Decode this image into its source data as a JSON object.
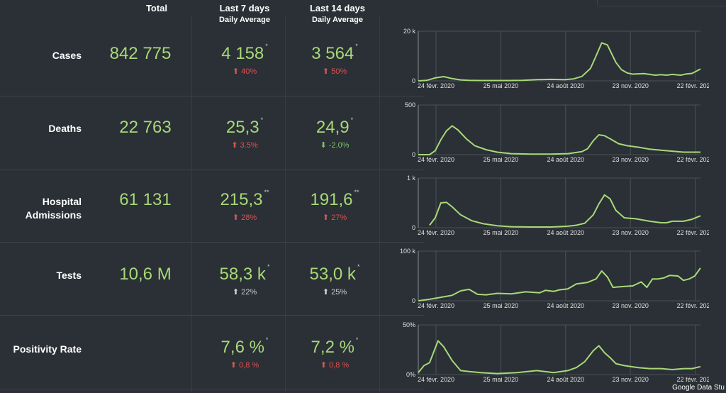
{
  "header": {
    "total": "Total",
    "last7_line1": "Last 7 days",
    "last7_line2": "Daily Average",
    "last14_line1": "Last 14 days",
    "last14_line2": "Daily Average"
  },
  "rows": [
    {
      "label": "Cases",
      "total": "842 775",
      "last7": {
        "value": "4 158",
        "mark": "*",
        "change": "⬆ 40%",
        "trend": "up-red"
      },
      "last14": {
        "value": "3 564",
        "mark": "*",
        "change": "⬆ 50%",
        "trend": "up-red"
      }
    },
    {
      "label": "Deaths",
      "total": "22 763",
      "last7": {
        "value": "25,3",
        "mark": "*",
        "change": "⬆ 3.5%",
        "trend": "up-red"
      },
      "last14": {
        "value": "24,9",
        "mark": "*",
        "change": "⬇ -2.0%",
        "trend": "down-green"
      }
    },
    {
      "label_line1": "Hospital",
      "label_line2": "Admissions",
      "total": "61 131",
      "last7": {
        "value": "215,3",
        "mark": "**",
        "change": "⬆ 28%",
        "trend": "up-red"
      },
      "last14": {
        "value": "191,6",
        "mark": "**",
        "change": "⬆ 27%",
        "trend": "up-red"
      }
    },
    {
      "label": "Tests",
      "total": "10,6 M",
      "last7": {
        "value": "58,3 k",
        "mark": "*",
        "change": "⬆ 22%",
        "trend": "up-grey"
      },
      "last14": {
        "value": "53,0 k",
        "mark": "*",
        "change": "⬆ 25%",
        "trend": "up-grey"
      }
    },
    {
      "label": "Positivity Rate",
      "total": "",
      "last7": {
        "value": "7,6 %",
        "mark": "*",
        "change": "⬆ 0,8 %",
        "trend": "up-red"
      },
      "last14": {
        "value": "7,2 %",
        "mark": "*",
        "change": "⬆ 0,8 %",
        "trend": "up-red"
      }
    }
  ],
  "chart_data": [
    {
      "type": "line",
      "series_color": "#a8d878",
      "y_ticks": [
        "0",
        "20 k"
      ],
      "ylim": [
        0,
        20000
      ],
      "x_ticks": [
        "24 févr. 2020",
        "25 mai 2020",
        "24 août 2020",
        "23 nov. 2020",
        "22 févr. 2021"
      ],
      "x": [
        0,
        0.03,
        0.06,
        0.09,
        0.12,
        0.15,
        0.18,
        0.22,
        0.27,
        0.32,
        0.37,
        0.42,
        0.47,
        0.52,
        0.55,
        0.58,
        0.61,
        0.63,
        0.65,
        0.67,
        0.7,
        0.72,
        0.74,
        0.76,
        0.8,
        0.84,
        0.86,
        0.88,
        0.9,
        0.93,
        0.95,
        0.97,
        1.0
      ],
      "y": [
        0,
        200,
        1200,
        1700,
        900,
        400,
        200,
        150,
        150,
        150,
        200,
        500,
        600,
        500,
        800,
        1800,
        5000,
        10000,
        15300,
        14500,
        7500,
        4500,
        3200,
        2700,
        2900,
        2300,
        2500,
        2300,
        2600,
        2300,
        2800,
        3000,
        4800
      ]
    },
    {
      "type": "line",
      "series_color": "#a8d878",
      "y_ticks": [
        "0",
        "500"
      ],
      "ylim": [
        0,
        500
      ],
      "x_ticks": [
        "24 févr. 2020",
        "25 mai 2020",
        "24 août 2020",
        "23 nov. 2020",
        "22 févr. 2021"
      ],
      "x": [
        0,
        0.04,
        0.06,
        0.08,
        0.1,
        0.12,
        0.14,
        0.17,
        0.2,
        0.24,
        0.28,
        0.33,
        0.4,
        0.47,
        0.53,
        0.58,
        0.6,
        0.62,
        0.64,
        0.66,
        0.68,
        0.71,
        0.74,
        0.78,
        0.82,
        0.86,
        0.9,
        0.94,
        1.0
      ],
      "y": [
        0,
        0,
        40,
        150,
        240,
        290,
        250,
        160,
        90,
        50,
        25,
        10,
        5,
        5,
        10,
        30,
        60,
        140,
        200,
        190,
        160,
        110,
        90,
        75,
        55,
        45,
        35,
        25,
        25
      ]
    },
    {
      "type": "line",
      "series_color": "#a8d878",
      "y_ticks": [
        "0",
        "1 k"
      ],
      "ylim": [
        0,
        1000
      ],
      "x_ticks": [
        "24 févr. 2020",
        "25 mai 2020",
        "24 août 2020",
        "23 nov. 2020",
        "22 févr. 2021"
      ],
      "x": [
        0.04,
        0.06,
        0.08,
        0.1,
        0.12,
        0.15,
        0.19,
        0.23,
        0.28,
        0.33,
        0.4,
        0.47,
        0.53,
        0.56,
        0.59,
        0.62,
        0.64,
        0.66,
        0.68,
        0.7,
        0.73,
        0.77,
        0.82,
        0.86,
        0.88,
        0.9,
        0.94,
        0.97,
        1.0
      ],
      "y": [
        50,
        200,
        500,
        510,
        420,
        260,
        140,
        80,
        40,
        20,
        15,
        15,
        30,
        50,
        90,
        260,
        480,
        660,
        580,
        350,
        200,
        180,
        130,
        100,
        100,
        130,
        130,
        170,
        240
      ]
    },
    {
      "type": "line",
      "series_color": "#a8d878",
      "y_ticks": [
        "0",
        "100 k"
      ],
      "ylim": [
        0,
        100000
      ],
      "x_ticks": [
        "24 févr. 2020",
        "25 mai 2020",
        "24 août 2020",
        "23 nov. 2020",
        "22 févr. 2021"
      ],
      "x": [
        0,
        0.04,
        0.08,
        0.12,
        0.15,
        0.18,
        0.21,
        0.24,
        0.28,
        0.33,
        0.38,
        0.43,
        0.45,
        0.48,
        0.5,
        0.53,
        0.56,
        0.6,
        0.63,
        0.65,
        0.67,
        0.69,
        0.71,
        0.76,
        0.79,
        0.81,
        0.83,
        0.85,
        0.87,
        0.89,
        0.92,
        0.94,
        0.96,
        0.98,
        1.0
      ],
      "y": [
        0,
        3000,
        7000,
        11000,
        20000,
        23000,
        13000,
        12000,
        15000,
        14000,
        18000,
        16000,
        21000,
        19000,
        22000,
        24000,
        34000,
        37000,
        44000,
        60000,
        48000,
        27000,
        28000,
        30000,
        38000,
        27000,
        44000,
        44000,
        46000,
        51000,
        50000,
        41000,
        44000,
        50000,
        66000
      ]
    },
    {
      "type": "line",
      "series_color": "#a8d878",
      "y_ticks": [
        "0%",
        "50%"
      ],
      "ylim": [
        0,
        50
      ],
      "x_ticks": [
        "24 févr. 2020",
        "25 mai 2020",
        "24 août 2020",
        "23 nov. 2020",
        "22 févr. 2021"
      ],
      "x": [
        0,
        0.02,
        0.04,
        0.07,
        0.09,
        0.12,
        0.15,
        0.18,
        0.22,
        0.28,
        0.35,
        0.42,
        0.48,
        0.53,
        0.56,
        0.59,
        0.62,
        0.64,
        0.66,
        0.68,
        0.7,
        0.73,
        0.78,
        0.82,
        0.86,
        0.9,
        0.94,
        0.97,
        1.0
      ],
      "y": [
        2,
        9,
        12,
        34,
        28,
        14,
        4,
        3,
        2,
        1,
        2,
        4,
        2,
        4,
        7,
        13,
        24,
        29,
        22,
        17,
        11,
        9,
        7,
        6,
        6,
        5,
        6,
        6,
        8
      ]
    }
  ],
  "footer": "Google Data Stu"
}
